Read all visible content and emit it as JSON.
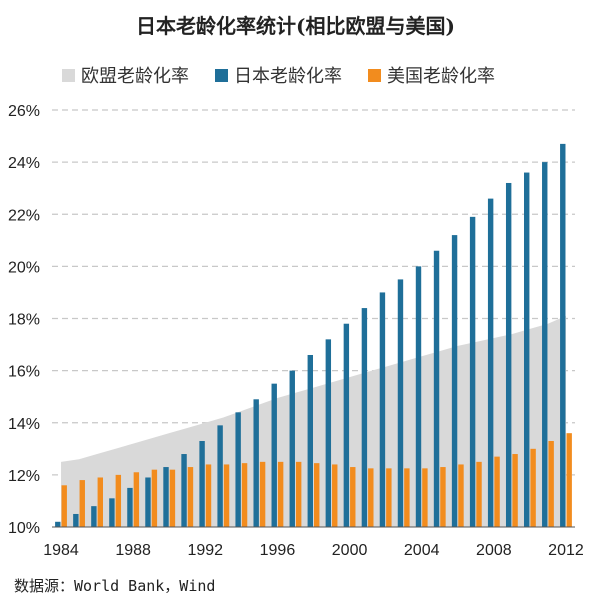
{
  "chart_data": {
    "type": "bar",
    "title": "日本老龄化率统计(相比欧盟与美国)",
    "ylim": [
      10,
      26
    ],
    "yticks": [
      "10%",
      "12%",
      "14%",
      "16%",
      "18%",
      "20%",
      "22%",
      "24%",
      "26%"
    ],
    "xticks": [
      "1984",
      "1988",
      "1992",
      "1996",
      "2000",
      "2004",
      "2008",
      "2012"
    ],
    "x": [
      1984,
      1985,
      1986,
      1987,
      1988,
      1989,
      1990,
      1991,
      1992,
      1993,
      1994,
      1995,
      1996,
      1997,
      1998,
      1999,
      2000,
      2001,
      2002,
      2003,
      2004,
      2005,
      2006,
      2007,
      2008,
      2009,
      2010,
      2011,
      2012
    ],
    "grid": true,
    "legend_position": "top",
    "series": [
      {
        "name": "欧盟老龄化率",
        "kind": "area",
        "color": "#d9d9d9",
        "values": [
          12.5,
          12.6,
          12.8,
          13.0,
          13.2,
          13.4,
          13.6,
          13.8,
          14.0,
          14.2,
          14.45,
          14.7,
          14.95,
          15.15,
          15.35,
          15.55,
          15.75,
          15.95,
          16.15,
          16.35,
          16.55,
          16.75,
          16.95,
          17.1,
          17.25,
          17.4,
          17.6,
          17.8,
          18.1
        ]
      },
      {
        "name": "日本老龄化率",
        "kind": "bar",
        "color": "#1f6f99",
        "values": [
          10.2,
          10.5,
          10.8,
          11.1,
          11.5,
          11.9,
          12.3,
          12.8,
          13.3,
          13.9,
          14.4,
          14.9,
          15.5,
          16.0,
          16.6,
          17.2,
          17.8,
          18.4,
          19.0,
          19.5,
          20.0,
          20.6,
          21.2,
          21.9,
          22.6,
          23.2,
          23.6,
          24.0,
          24.7
        ]
      },
      {
        "name": "美国老龄化率",
        "kind": "bar",
        "color": "#f28c1e",
        "values": [
          11.6,
          11.8,
          11.9,
          12.0,
          12.1,
          12.2,
          12.2,
          12.3,
          12.4,
          12.4,
          12.45,
          12.5,
          12.5,
          12.5,
          12.45,
          12.4,
          12.3,
          12.25,
          12.25,
          12.25,
          12.25,
          12.3,
          12.4,
          12.5,
          12.7,
          12.8,
          13.0,
          13.3,
          13.6
        ]
      }
    ]
  },
  "source": "数据源：World Bank，Wind"
}
